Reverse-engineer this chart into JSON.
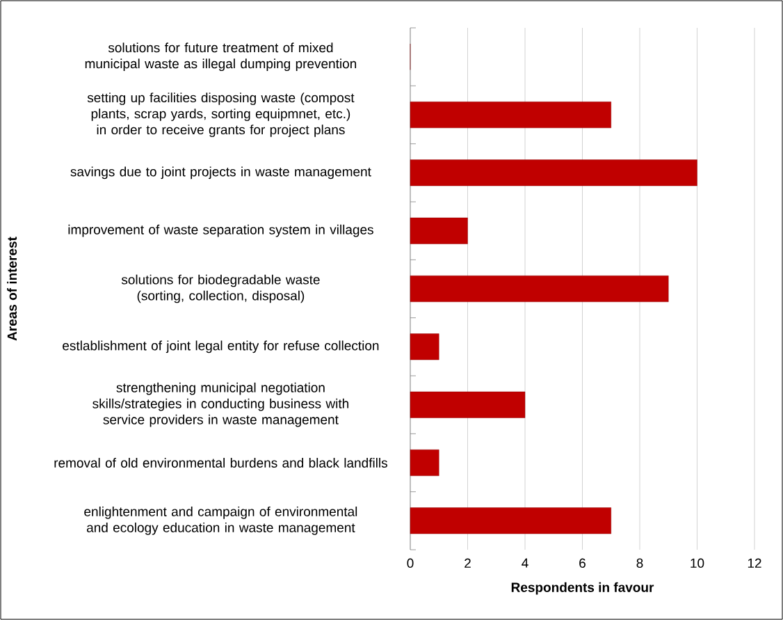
{
  "chart_data": {
    "type": "bar",
    "orientation": "horizontal",
    "categories": [
      "solutions for future treatment of mixed municipal waste as illegal dumping prevention",
      "setting up facilities disposing waste (compost plants, scrap yards, sorting equipmnet, etc.) in order to receive grants for project plans",
      "savings due to joint projects in waste management",
      "improvement of waste separation system in villages",
      "solutions for biodegradable waste (sorting, collection, disposal)",
      "estlablishment of joint legal entity for refuse collection",
      "strengthening municipal negotiation skills/strategies in conducting business with service providers in waste management",
      "removal of old environmental burdens and black landfills",
      "enlightenment and campaign of environmental and ecology education in waste management"
    ],
    "values": [
      0,
      7,
      10,
      2,
      9,
      1,
      4,
      1,
      7
    ],
    "color": "#c00000",
    "xlim": [
      0,
      12
    ],
    "xticks": [
      0,
      2,
      4,
      6,
      8,
      10,
      12
    ],
    "grid": "x",
    "xlabel": "Respondents in favour",
    "ylabel": "Areas of interest"
  }
}
